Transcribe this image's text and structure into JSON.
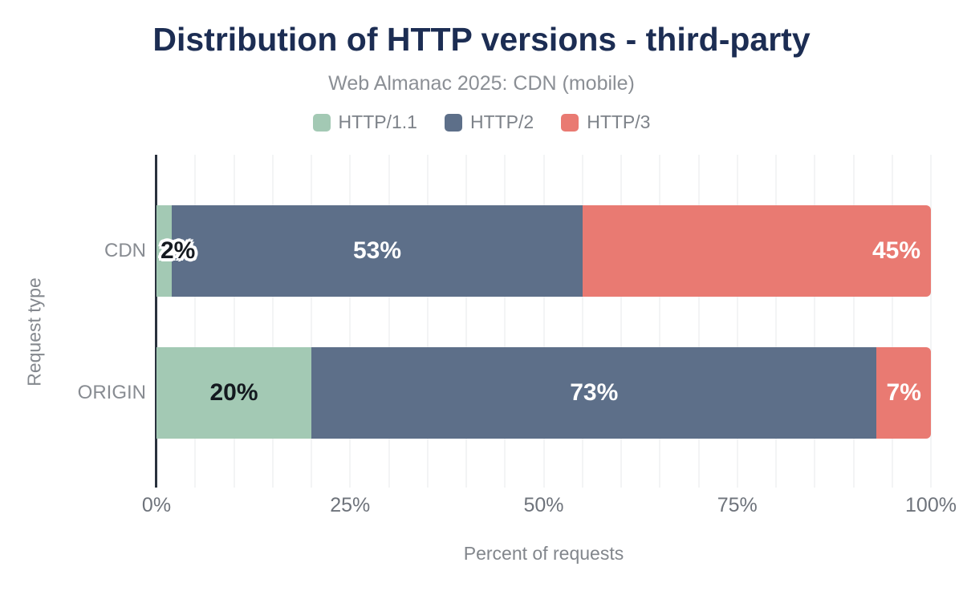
{
  "header": {
    "title": "Distribution of HTTP versions - third-party",
    "subtitle": "Web Almanac 2025: CDN (mobile)"
  },
  "theme": {
    "title_color": "#1c2d53",
    "series_colors": {
      "HTTP/1.1": "#a3c9b4",
      "HTTP/2": "#5d6f89",
      "HTTP/3": "#e97a72"
    }
  },
  "legend": [
    {
      "label": "HTTP/1.1",
      "color": "#a3c9b4"
    },
    {
      "label": "HTTP/2",
      "color": "#5d6f89"
    },
    {
      "label": "HTTP/3",
      "color": "#e97a72"
    }
  ],
  "chart_data": {
    "type": "bar",
    "orientation": "horizontal",
    "stacked": true,
    "title": "Distribution of HTTP versions - third-party",
    "subtitle": "Web Almanac 2025: CDN (mobile)",
    "xlabel": "Percent of requests",
    "ylabel": "Request type",
    "xlim": [
      0,
      100
    ],
    "xticks": [
      {
        "value": 0,
        "label": "0%"
      },
      {
        "value": 25,
        "label": "25%"
      },
      {
        "value": 50,
        "label": "50%"
      },
      {
        "value": 75,
        "label": "75%"
      },
      {
        "value": 100,
        "label": "100%"
      }
    ],
    "grid_step_percent": 5,
    "legend_position": "top",
    "categories": [
      "CDN",
      "ORIGIN"
    ],
    "series": [
      {
        "name": "HTTP/1.1",
        "color": "#a3c9b4",
        "values": [
          2,
          20
        ]
      },
      {
        "name": "HTTP/2",
        "color": "#5d6f89",
        "values": [
          53,
          73
        ]
      },
      {
        "name": "HTTP/3",
        "color": "#e97a72",
        "values": [
          45,
          7
        ]
      }
    ],
    "rows": [
      {
        "category": "CDN",
        "segments": [
          {
            "series": "HTTP/1.1",
            "value": 2,
            "label": "2%",
            "label_align": "overflow-left",
            "label_theme": "dark-stroke"
          },
          {
            "series": "HTTP/2",
            "value": 53,
            "label": "53%",
            "label_align": "center",
            "label_theme": "light"
          },
          {
            "series": "HTTP/3",
            "value": 45,
            "label": "45%",
            "label_align": "right",
            "label_theme": "light"
          }
        ]
      },
      {
        "category": "ORIGIN",
        "segments": [
          {
            "series": "HTTP/1.1",
            "value": 20,
            "label": "20%",
            "label_align": "center",
            "label_theme": "dark"
          },
          {
            "series": "HTTP/2",
            "value": 73,
            "label": "73%",
            "label_align": "center",
            "label_theme": "light"
          },
          {
            "series": "HTTP/3",
            "value": 7,
            "label": "7%",
            "label_align": "center",
            "label_theme": "light"
          }
        ]
      }
    ]
  }
}
